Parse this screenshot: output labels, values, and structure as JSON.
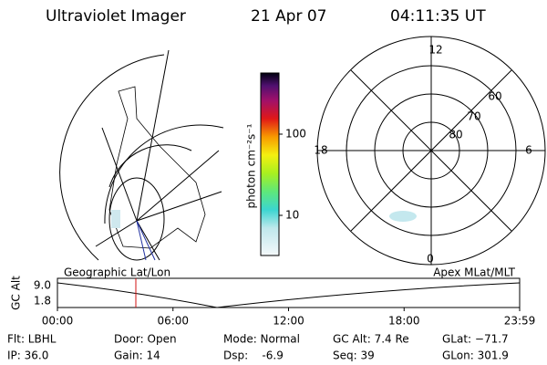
{
  "header": {
    "title": "Ultraviolet Imager",
    "date": "21 Apr 07",
    "time": "04:11:35 UT"
  },
  "colorbar": {
    "label": "photon cm⁻²s⁻¹",
    "scale": "log",
    "ticks": [
      10,
      100
    ]
  },
  "polar": {
    "mlt_labels": [
      "12",
      "18",
      "6",
      "0"
    ],
    "mlat_labels": [
      "60",
      "70",
      "80"
    ]
  },
  "timeline": {
    "left_label": "Geographic Lat/Lon",
    "right_label": "Apex MLat/MLT",
    "y_label": "GC Alt",
    "yticks": [
      "9.0",
      "1.8"
    ],
    "xticks": [
      "00:00",
      "06:00",
      "12:00",
      "18:00",
      "23:59"
    ]
  },
  "footer": {
    "rows": [
      [
        "Flt: LBHL",
        "Door: Open",
        "Mode: Normal",
        "GC Alt: 7.4 Re",
        "GLat: −71.7"
      ],
      [
        "IP: 36.0",
        "Gain: 14",
        "Dsp:    -6.9",
        "Seq: 39",
        "GLon: 301.9"
      ]
    ]
  }
}
